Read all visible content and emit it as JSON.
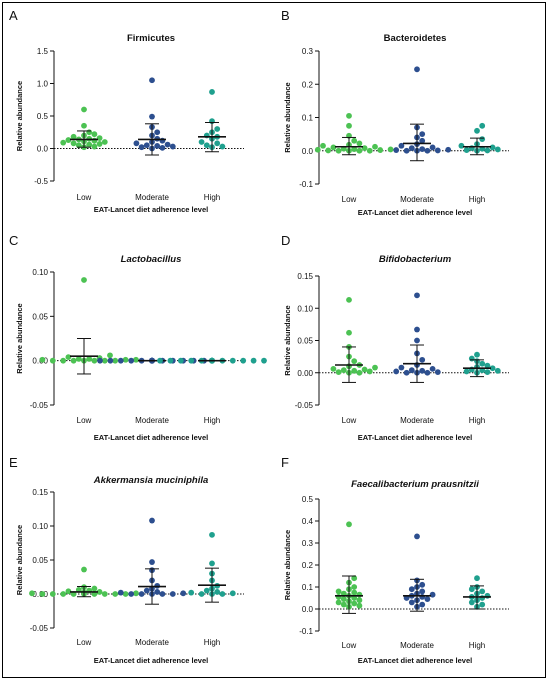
{
  "colors": {
    "low": "#4cc253",
    "moderate": "#2d4f8f",
    "high": "#1fa08e"
  },
  "chart_data": [
    {
      "type": "scatter",
      "panel": "A",
      "title": "Firmicutes",
      "title_italic": false,
      "ylabel": "Relative abundance",
      "xlabel": "EAT-Lancet diet adherence level",
      "categories": [
        "Low",
        "Moderate",
        "High"
      ],
      "ylim": [
        -0.5,
        1.5
      ],
      "yticks": [
        -0.5,
        0.0,
        0.5,
        1.0,
        1.5
      ],
      "yticklabels": [
        "-0.5",
        "0.0",
        "0.5",
        "1.0",
        "1.5"
      ],
      "reference_line": 0,
      "series": [
        {
          "category": "Low",
          "mean": 0.14,
          "sd_low": 0.02,
          "sd_high": 0.27,
          "points": [
            0.6,
            0.35,
            0.25,
            0.22,
            0.2,
            0.18,
            0.16,
            0.15,
            0.14,
            0.13,
            0.12,
            0.11,
            0.1,
            0.09,
            0.08,
            0.07,
            0.06,
            0.05,
            0.03,
            0.02
          ]
        },
        {
          "category": "Moderate",
          "mean": 0.14,
          "sd_low": -0.1,
          "sd_high": 0.38,
          "points": [
            1.05,
            0.49,
            0.33,
            0.25,
            0.2,
            0.15,
            0.12,
            0.1,
            0.08,
            0.06,
            0.05,
            0.04,
            0.03,
            0.02,
            0.01,
            0.0
          ]
        },
        {
          "category": "High",
          "mean": 0.18,
          "sd_low": -0.05,
          "sd_high": 0.4,
          "points": [
            0.87,
            0.42,
            0.3,
            0.25,
            0.2,
            0.18,
            0.15,
            0.1,
            0.08,
            0.05,
            0.03,
            0.02
          ]
        }
      ]
    },
    {
      "type": "scatter",
      "panel": "B",
      "title": "Bacteroidetes",
      "title_italic": false,
      "ylabel": "Relative abundance",
      "xlabel": "EAT-Lancet diet adherence level",
      "categories": [
        "Low",
        "Moderate",
        "High"
      ],
      "ylim": [
        -0.1,
        0.3
      ],
      "yticks": [
        -0.1,
        0.0,
        0.1,
        0.2,
        0.3
      ],
      "yticklabels": [
        "-0.1",
        "0.0",
        "0.1",
        "0.2",
        "0.3"
      ],
      "reference_line": 0,
      "series": [
        {
          "category": "Low",
          "mean": 0.012,
          "sd_low": -0.012,
          "sd_high": 0.04,
          "points": [
            0.105,
            0.075,
            0.045,
            0.03,
            0.022,
            0.018,
            0.015,
            0.012,
            0.01,
            0.008,
            0.006,
            0.005,
            0.004,
            0.003,
            0.002,
            0.001,
            0.0,
            0.0,
            0.0,
            0.0
          ]
        },
        {
          "category": "Moderate",
          "mean": 0.022,
          "sd_low": -0.03,
          "sd_high": 0.08,
          "points": [
            0.245,
            0.07,
            0.05,
            0.04,
            0.03,
            0.02,
            0.015,
            0.01,
            0.008,
            0.005,
            0.003,
            0.002,
            0.001,
            0.0,
            0.0,
            0.0
          ]
        },
        {
          "category": "High",
          "mean": 0.012,
          "sd_low": -0.012,
          "sd_high": 0.038,
          "points": [
            0.075,
            0.06,
            0.035,
            0.02,
            0.015,
            0.01,
            0.008,
            0.006,
            0.004,
            0.002,
            0.001,
            0.0
          ]
        }
      ]
    },
    {
      "type": "scatter",
      "panel": "C",
      "title": "Lactobacillus",
      "title_italic": true,
      "ylabel": "Relative abundance",
      "xlabel": "EAT-Lancet diet adherence level",
      "categories": [
        "Low",
        "Moderate",
        "High"
      ],
      "ylim": [
        -0.05,
        0.1
      ],
      "yticks": [
        -0.05,
        0.0,
        0.05,
        0.1
      ],
      "yticklabels": [
        "-0.05",
        "0.00",
        "0.05",
        "0.10"
      ],
      "reference_line": 0,
      "series": [
        {
          "category": "Low",
          "mean": 0.005,
          "sd_low": -0.015,
          "sd_high": 0.025,
          "points": [
            0.091,
            0.006,
            0.004,
            0.003,
            0.002,
            0.002,
            0.001,
            0.001,
            0.001,
            0.0,
            0.0,
            0.0,
            0.0,
            0.0,
            0.0,
            0.0
          ]
        },
        {
          "category": "Moderate",
          "mean": 0.0,
          "sd_low": 0.0,
          "sd_high": 0.0,
          "points": [
            0,
            0,
            0,
            0,
            0,
            0,
            0,
            0,
            0,
            0,
            0,
            0,
            0,
            0,
            0,
            0,
            0,
            0,
            0,
            0
          ]
        },
        {
          "category": "High",
          "mean": 0.0,
          "sd_low": 0.0,
          "sd_high": 0.0,
          "points": [
            0,
            0,
            0,
            0,
            0,
            0,
            0,
            0,
            0,
            0,
            0,
            0,
            0,
            0,
            0,
            0,
            0,
            0
          ]
        }
      ]
    },
    {
      "type": "scatter",
      "panel": "D",
      "title": "Bifidobacterium",
      "title_italic": true,
      "ylabel": "Relative abundance",
      "xlabel": "EAT-Lancet diet adherence level",
      "categories": [
        "Low",
        "Moderate",
        "High"
      ],
      "ylim": [
        -0.05,
        0.15
      ],
      "yticks": [
        -0.05,
        0.0,
        0.05,
        0.1,
        0.15
      ],
      "yticklabels": [
        "-0.05",
        "0.00",
        "0.05",
        "0.10",
        "0.15"
      ],
      "reference_line": 0,
      "series": [
        {
          "category": "Low",
          "mean": 0.012,
          "sd_low": -0.015,
          "sd_high": 0.04,
          "points": [
            0.113,
            0.062,
            0.04,
            0.025,
            0.018,
            0.012,
            0.01,
            0.008,
            0.006,
            0.005,
            0.004,
            0.003,
            0.002,
            0.001,
            0.0,
            0.0
          ]
        },
        {
          "category": "Moderate",
          "mean": 0.014,
          "sd_low": -0.015,
          "sd_high": 0.043,
          "points": [
            0.12,
            0.067,
            0.05,
            0.03,
            0.02,
            0.012,
            0.008,
            0.006,
            0.004,
            0.003,
            0.002,
            0.001,
            0.0,
            0.0,
            0.0
          ]
        },
        {
          "category": "High",
          "mean": 0.007,
          "sd_low": -0.006,
          "sd_high": 0.02,
          "points": [
            0.028,
            0.022,
            0.018,
            0.014,
            0.011,
            0.009,
            0.007,
            0.005,
            0.004,
            0.003,
            0.002,
            0.001,
            0.0
          ]
        }
      ]
    },
    {
      "type": "scatter",
      "panel": "E",
      "title": "Akkermansia muciniphila",
      "title_italic": true,
      "ylabel": "Relative abundance",
      "xlabel": "EAT-Lancet diet adherence level",
      "categories": [
        "Low",
        "Moderate",
        "High"
      ],
      "ylim": [
        -0.05,
        0.15
      ],
      "yticks": [
        -0.05,
        0.0,
        0.05,
        0.1,
        0.15
      ],
      "yticklabels": [
        "-0.05",
        "0.00",
        "0.05",
        "0.10",
        "0.15"
      ],
      "reference_line": 0,
      "series": [
        {
          "category": "Low",
          "mean": 0.003,
          "sd_low": -0.004,
          "sd_high": 0.011,
          "points": [
            0.036,
            0.01,
            0.008,
            0.006,
            0.005,
            0.004,
            0.003,
            0.002,
            0.002,
            0.001,
            0.001,
            0.0,
            0.0,
            0.0,
            0.0,
            0.0,
            0.0,
            0.0,
            0.0,
            0.0
          ]
        },
        {
          "category": "Moderate",
          "mean": 0.011,
          "sd_low": -0.015,
          "sd_high": 0.037,
          "points": [
            0.108,
            0.047,
            0.035,
            0.02,
            0.012,
            0.008,
            0.005,
            0.003,
            0.002,
            0.001,
            0.0,
            0.0,
            0.0,
            0.0,
            0.0
          ]
        },
        {
          "category": "High",
          "mean": 0.013,
          "sd_low": -0.012,
          "sd_high": 0.038,
          "points": [
            0.087,
            0.045,
            0.03,
            0.02,
            0.012,
            0.008,
            0.005,
            0.003,
            0.002,
            0.001,
            0.0,
            0.0,
            0.0
          ]
        }
      ]
    },
    {
      "type": "scatter",
      "panel": "F",
      "title": "Faecalibacterium prausnitzii",
      "title_italic": true,
      "ylabel": "Relative abundance",
      "xlabel": "EAT-Lancet diet adherence level",
      "categories": [
        "Low",
        "Moderate",
        "High"
      ],
      "ylim": [
        -0.1,
        0.5
      ],
      "yticks": [
        -0.1,
        0.0,
        0.1,
        0.2,
        0.3,
        0.4,
        0.5
      ],
      "yticklabels": [
        "-0.1",
        "0.0",
        "0.1",
        "0.2",
        "0.3",
        "0.4",
        "0.5"
      ],
      "reference_line": 0,
      "series": [
        {
          "category": "Low",
          "mean": 0.06,
          "sd_low": -0.02,
          "sd_high": 0.15,
          "points": [
            0.385,
            0.14,
            0.12,
            0.1,
            0.09,
            0.08,
            0.075,
            0.07,
            0.065,
            0.06,
            0.055,
            0.05,
            0.045,
            0.04,
            0.035,
            0.03,
            0.025,
            0.02,
            0.015,
            0.01
          ]
        },
        {
          "category": "Moderate",
          "mean": 0.06,
          "sd_low": -0.01,
          "sd_high": 0.135,
          "points": [
            0.33,
            0.13,
            0.11,
            0.1,
            0.09,
            0.08,
            0.07,
            0.065,
            0.06,
            0.055,
            0.05,
            0.045,
            0.04,
            0.03,
            0.02,
            0.01
          ]
        },
        {
          "category": "High",
          "mean": 0.055,
          "sd_low": 0.0,
          "sd_high": 0.105,
          "points": [
            0.14,
            0.1,
            0.09,
            0.08,
            0.07,
            0.06,
            0.055,
            0.05,
            0.04,
            0.03,
            0.02,
            0.01
          ]
        }
      ]
    }
  ]
}
